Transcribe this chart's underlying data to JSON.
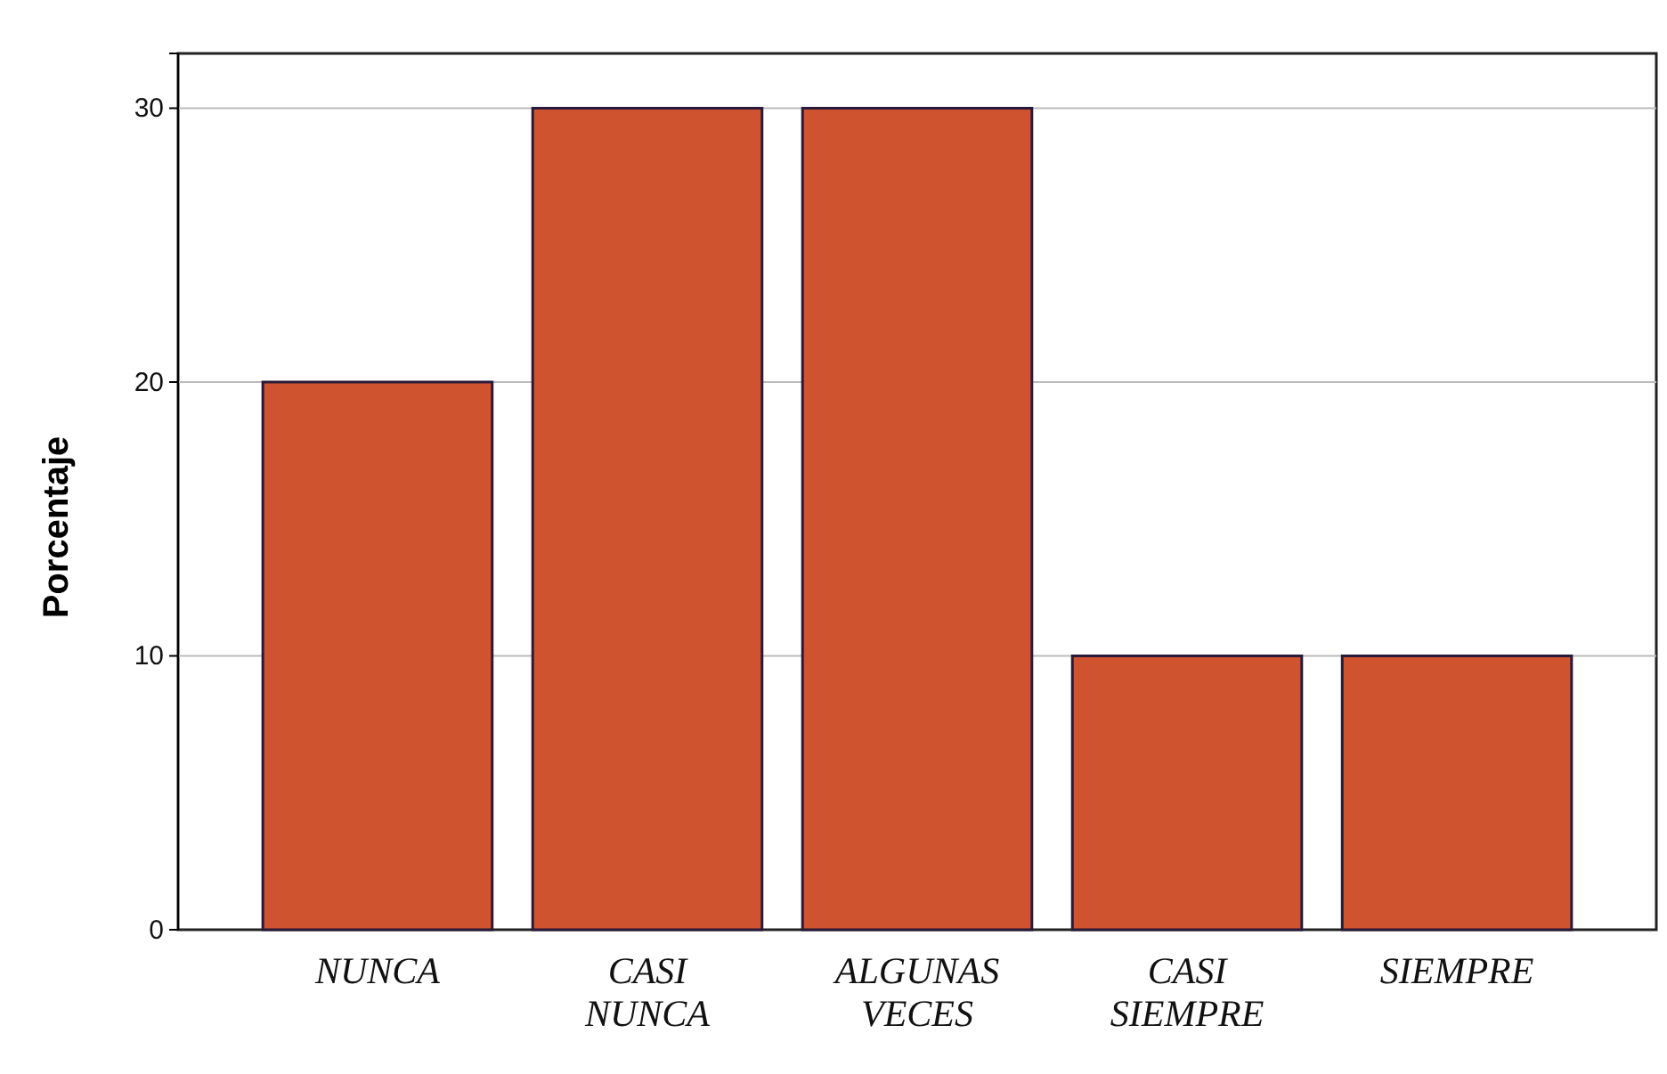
{
  "chart_data": {
    "type": "bar",
    "ylabel": "Porcentaje",
    "categories": [
      "NUNCA",
      "CASI NUNCA",
      "ALGUNAS VECES",
      "CASI SIEMPRE",
      "SIEMPRE"
    ],
    "values": [
      20,
      30,
      30,
      10,
      10
    ],
    "color": "#d0532f",
    "ylim": [
      0,
      32
    ],
    "yticks": [
      0,
      10,
      20,
      30
    ],
    "grid": "y"
  }
}
